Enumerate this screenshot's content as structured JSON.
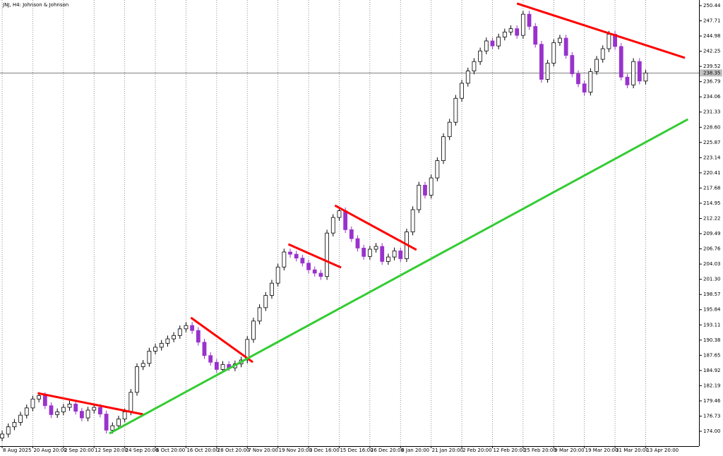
{
  "chart_data": {
    "type": "candlestick",
    "title": "JNJ, H4: Johnson & Johnson",
    "up_color": "#000000",
    "down_color": "#9932cc",
    "last_price": 238.35,
    "xlim": [
      -0.35,
      113.7
    ],
    "ylim": [
      171.34,
      251.45
    ],
    "yticks": [
      {
        "value": 174.0,
        "label": "174.00"
      },
      176.73,
      179.46,
      182.19,
      184.92,
      187.65,
      190.38,
      193.11,
      195.84,
      198.57,
      {
        "value": 201.3,
        "label": "201.30"
      },
      204.03,
      206.76,
      209.49,
      212.22,
      214.95,
      217.68,
      220.41,
      223.14,
      225.87,
      {
        "value": 228.6,
        "label": "228.60"
      },
      231.33,
      234.06,
      236.79,
      239.52,
      242.25,
      244.98,
      247.71,
      250.44
    ],
    "categories": [
      "8 Aug 2025",
      null,
      null,
      null,
      null,
      "20 Aug 20:00",
      null,
      null,
      null,
      null,
      "2 Sep 20:00",
      null,
      null,
      null,
      null,
      "12 Sep 20:00",
      null,
      null,
      null,
      null,
      "24 Sep 20:00",
      null,
      null,
      null,
      null,
      "6 Oct 20:00",
      null,
      null,
      null,
      null,
      "16 Oct 20:00",
      null,
      null,
      null,
      null,
      "28 Oct 20:00",
      null,
      null,
      null,
      null,
      "7 Nov 20:00",
      null,
      null,
      null,
      null,
      "19 Nov 20:00",
      null,
      null,
      null,
      null,
      "3 Dec 16:00",
      null,
      null,
      null,
      null,
      "15 Dec 16:00",
      null,
      null,
      null,
      null,
      "26 Dec 20:00",
      null,
      null,
      null,
      null,
      "8 Jan 20:00",
      null,
      null,
      null,
      null,
      "21 Jan 20:00",
      null,
      null,
      null,
      null,
      "2 Feb 20:00",
      null,
      null,
      null,
      null,
      "12 Feb 20:00",
      null,
      null,
      null,
      null,
      "25 Feb 20:00",
      null,
      null,
      null,
      null,
      "9 Mar 20:00",
      null,
      null,
      null,
      null,
      "19 Mar 20:00",
      null,
      null,
      null,
      null,
      "31 Mar 20:00",
      null,
      null,
      null,
      null,
      "13 Apr 20:00"
    ],
    "open": [
      172.8,
      173.5,
      174.8,
      175.6,
      176.9,
      178.2,
      179.8,
      180.4,
      178.6,
      177.0,
      177.5,
      178.3,
      178.9,
      177.6,
      176.4,
      177.8,
      178.3,
      177.1,
      174.2,
      175.0,
      176.2,
      177.5,
      181.0,
      185.6,
      186.2,
      188.4,
      189.1,
      189.8,
      190.6,
      191.2,
      192.4,
      193.0,
      192.1,
      190.0,
      187.6,
      186.4,
      185.1,
      186.0,
      185.4,
      186.1,
      186.8,
      190.5,
      193.8,
      196.2,
      198.4,
      200.6,
      203.5,
      206.2,
      205.8,
      205.1,
      204.2,
      203.0,
      202.4,
      201.8,
      209.6,
      212.4,
      213.6,
      210.2,
      208.6,
      206.9,
      205.4,
      206.7,
      207.2,
      204.5,
      205.3,
      206.4,
      205.0,
      209.8,
      213.8,
      218.2,
      216.4,
      219.5,
      222.6,
      226.9,
      229.5,
      233.8,
      236.5,
      238.7,
      240.4,
      242.3,
      244.1,
      243.2,
      244.8,
      245.7,
      246.3,
      245.1,
      248.9,
      246.7,
      243.5,
      237.2,
      240.1,
      243.8,
      244.6,
      241.5,
      238.2,
      236.4,
      234.9,
      238.6,
      240.8,
      242.7,
      245.3,
      243.1,
      237.6,
      236.2,
      240.4,
      236.9
    ],
    "high": [
      174.1,
      175.4,
      176.2,
      177.5,
      178.8,
      180.4,
      181.0,
      181.0,
      179.2,
      178.1,
      178.9,
      179.5,
      179.5,
      178.2,
      178.4,
      178.9,
      178.9,
      177.7,
      175.6,
      176.8,
      178.1,
      181.6,
      186.2,
      186.8,
      189.0,
      189.7,
      190.4,
      191.2,
      191.8,
      193.0,
      193.6,
      193.6,
      192.7,
      190.6,
      188.2,
      187.0,
      186.6,
      186.6,
      186.7,
      187.4,
      191.1,
      194.4,
      196.8,
      199.0,
      201.2,
      204.1,
      206.8,
      206.8,
      206.4,
      205.7,
      204.8,
      203.6,
      203.0,
      210.2,
      213.0,
      214.2,
      214.2,
      210.8,
      209.2,
      207.5,
      207.3,
      207.8,
      207.8,
      205.9,
      207.0,
      207.0,
      210.4,
      214.4,
      218.8,
      218.8,
      220.1,
      223.2,
      227.5,
      230.1,
      234.4,
      237.1,
      239.3,
      241.0,
      242.9,
      244.7,
      244.7,
      245.4,
      246.3,
      246.9,
      246.9,
      249.5,
      249.5,
      247.3,
      244.1,
      240.7,
      244.4,
      245.2,
      245.2,
      242.1,
      238.8,
      237.0,
      239.2,
      241.4,
      243.3,
      245.9,
      245.9,
      243.7,
      238.2,
      241.0,
      241.0,
      238.95
    ],
    "low": [
      172.2,
      172.9,
      174.2,
      175.0,
      176.3,
      177.6,
      179.2,
      178.0,
      176.4,
      176.4,
      176.9,
      177.7,
      177.0,
      175.8,
      175.8,
      177.2,
      176.5,
      173.6,
      173.6,
      174.4,
      175.6,
      176.9,
      180.4,
      185.0,
      185.6,
      187.8,
      188.5,
      189.2,
      190.0,
      190.6,
      191.8,
      191.5,
      189.4,
      187.0,
      185.8,
      184.5,
      184.5,
      184.8,
      184.8,
      185.5,
      186.2,
      189.9,
      193.2,
      195.6,
      197.8,
      200.0,
      202.9,
      205.2,
      204.5,
      203.6,
      202.4,
      201.8,
      201.2,
      201.2,
      209.0,
      211.8,
      209.6,
      208.0,
      206.3,
      204.8,
      204.8,
      206.1,
      203.9,
      203.9,
      204.7,
      204.4,
      204.4,
      209.2,
      213.2,
      215.8,
      215.8,
      218.9,
      222.0,
      226.3,
      228.9,
      233.2,
      235.9,
      238.1,
      239.8,
      241.7,
      242.6,
      242.6,
      244.2,
      245.1,
      244.5,
      244.5,
      246.1,
      242.9,
      236.6,
      236.6,
      239.5,
      243.2,
      240.9,
      237.6,
      235.8,
      234.3,
      234.3,
      238.0,
      240.2,
      242.1,
      242.5,
      237.0,
      235.6,
      235.6,
      236.3,
      236.3
    ],
    "close": [
      173.5,
      174.8,
      175.6,
      176.9,
      178.2,
      179.8,
      180.4,
      178.6,
      177.0,
      177.5,
      178.3,
      178.9,
      177.6,
      176.4,
      177.8,
      178.3,
      177.1,
      174.2,
      175.0,
      176.2,
      177.5,
      181.0,
      185.6,
      186.2,
      188.4,
      189.1,
      189.8,
      190.6,
      191.2,
      192.4,
      193.0,
      192.1,
      190.0,
      187.6,
      186.4,
      185.1,
      186.0,
      185.4,
      186.1,
      186.8,
      190.5,
      193.8,
      196.2,
      198.4,
      200.6,
      203.5,
      206.2,
      205.8,
      205.1,
      204.2,
      203.0,
      202.4,
      201.8,
      209.6,
      212.4,
      213.6,
      210.2,
      208.6,
      206.9,
      205.4,
      206.7,
      207.2,
      204.5,
      205.3,
      206.4,
      205.0,
      209.8,
      213.8,
      218.2,
      216.4,
      219.5,
      222.6,
      226.9,
      229.5,
      233.8,
      236.5,
      238.7,
      240.4,
      242.3,
      244.1,
      243.2,
      244.8,
      245.7,
      246.3,
      245.1,
      248.9,
      246.7,
      243.5,
      237.2,
      240.1,
      243.8,
      244.6,
      241.5,
      238.2,
      236.4,
      234.9,
      238.6,
      240.8,
      242.7,
      245.3,
      243.1,
      237.6,
      236.2,
      240.4,
      236.9,
      238.35
    ],
    "trendlines": [
      {
        "color": "#ff0000",
        "x": [
          5.8,
          23.0
        ],
        "y": [
          180.85,
          177.04
        ]
      },
      {
        "color": "#ff0000",
        "x": [
          30.8,
          40.9
        ],
        "y": [
          194.41,
          186.42
        ]
      },
      {
        "color": "#ff0000",
        "x": [
          46.7,
          55.3
        ],
        "y": [
          207.59,
          203.41
        ]
      },
      {
        "color": "#ff0000",
        "x": [
          54.3,
          67.6
        ],
        "y": [
          214.56,
          206.58
        ]
      },
      {
        "color": "#ff0000",
        "x": [
          84.0,
          111.4
        ],
        "y": [
          250.82,
          241.06
        ]
      },
      {
        "color": "#33cc33",
        "x": [
          17.5,
          111.9
        ],
        "y": [
          173.62,
          230.03
        ]
      }
    ]
  }
}
